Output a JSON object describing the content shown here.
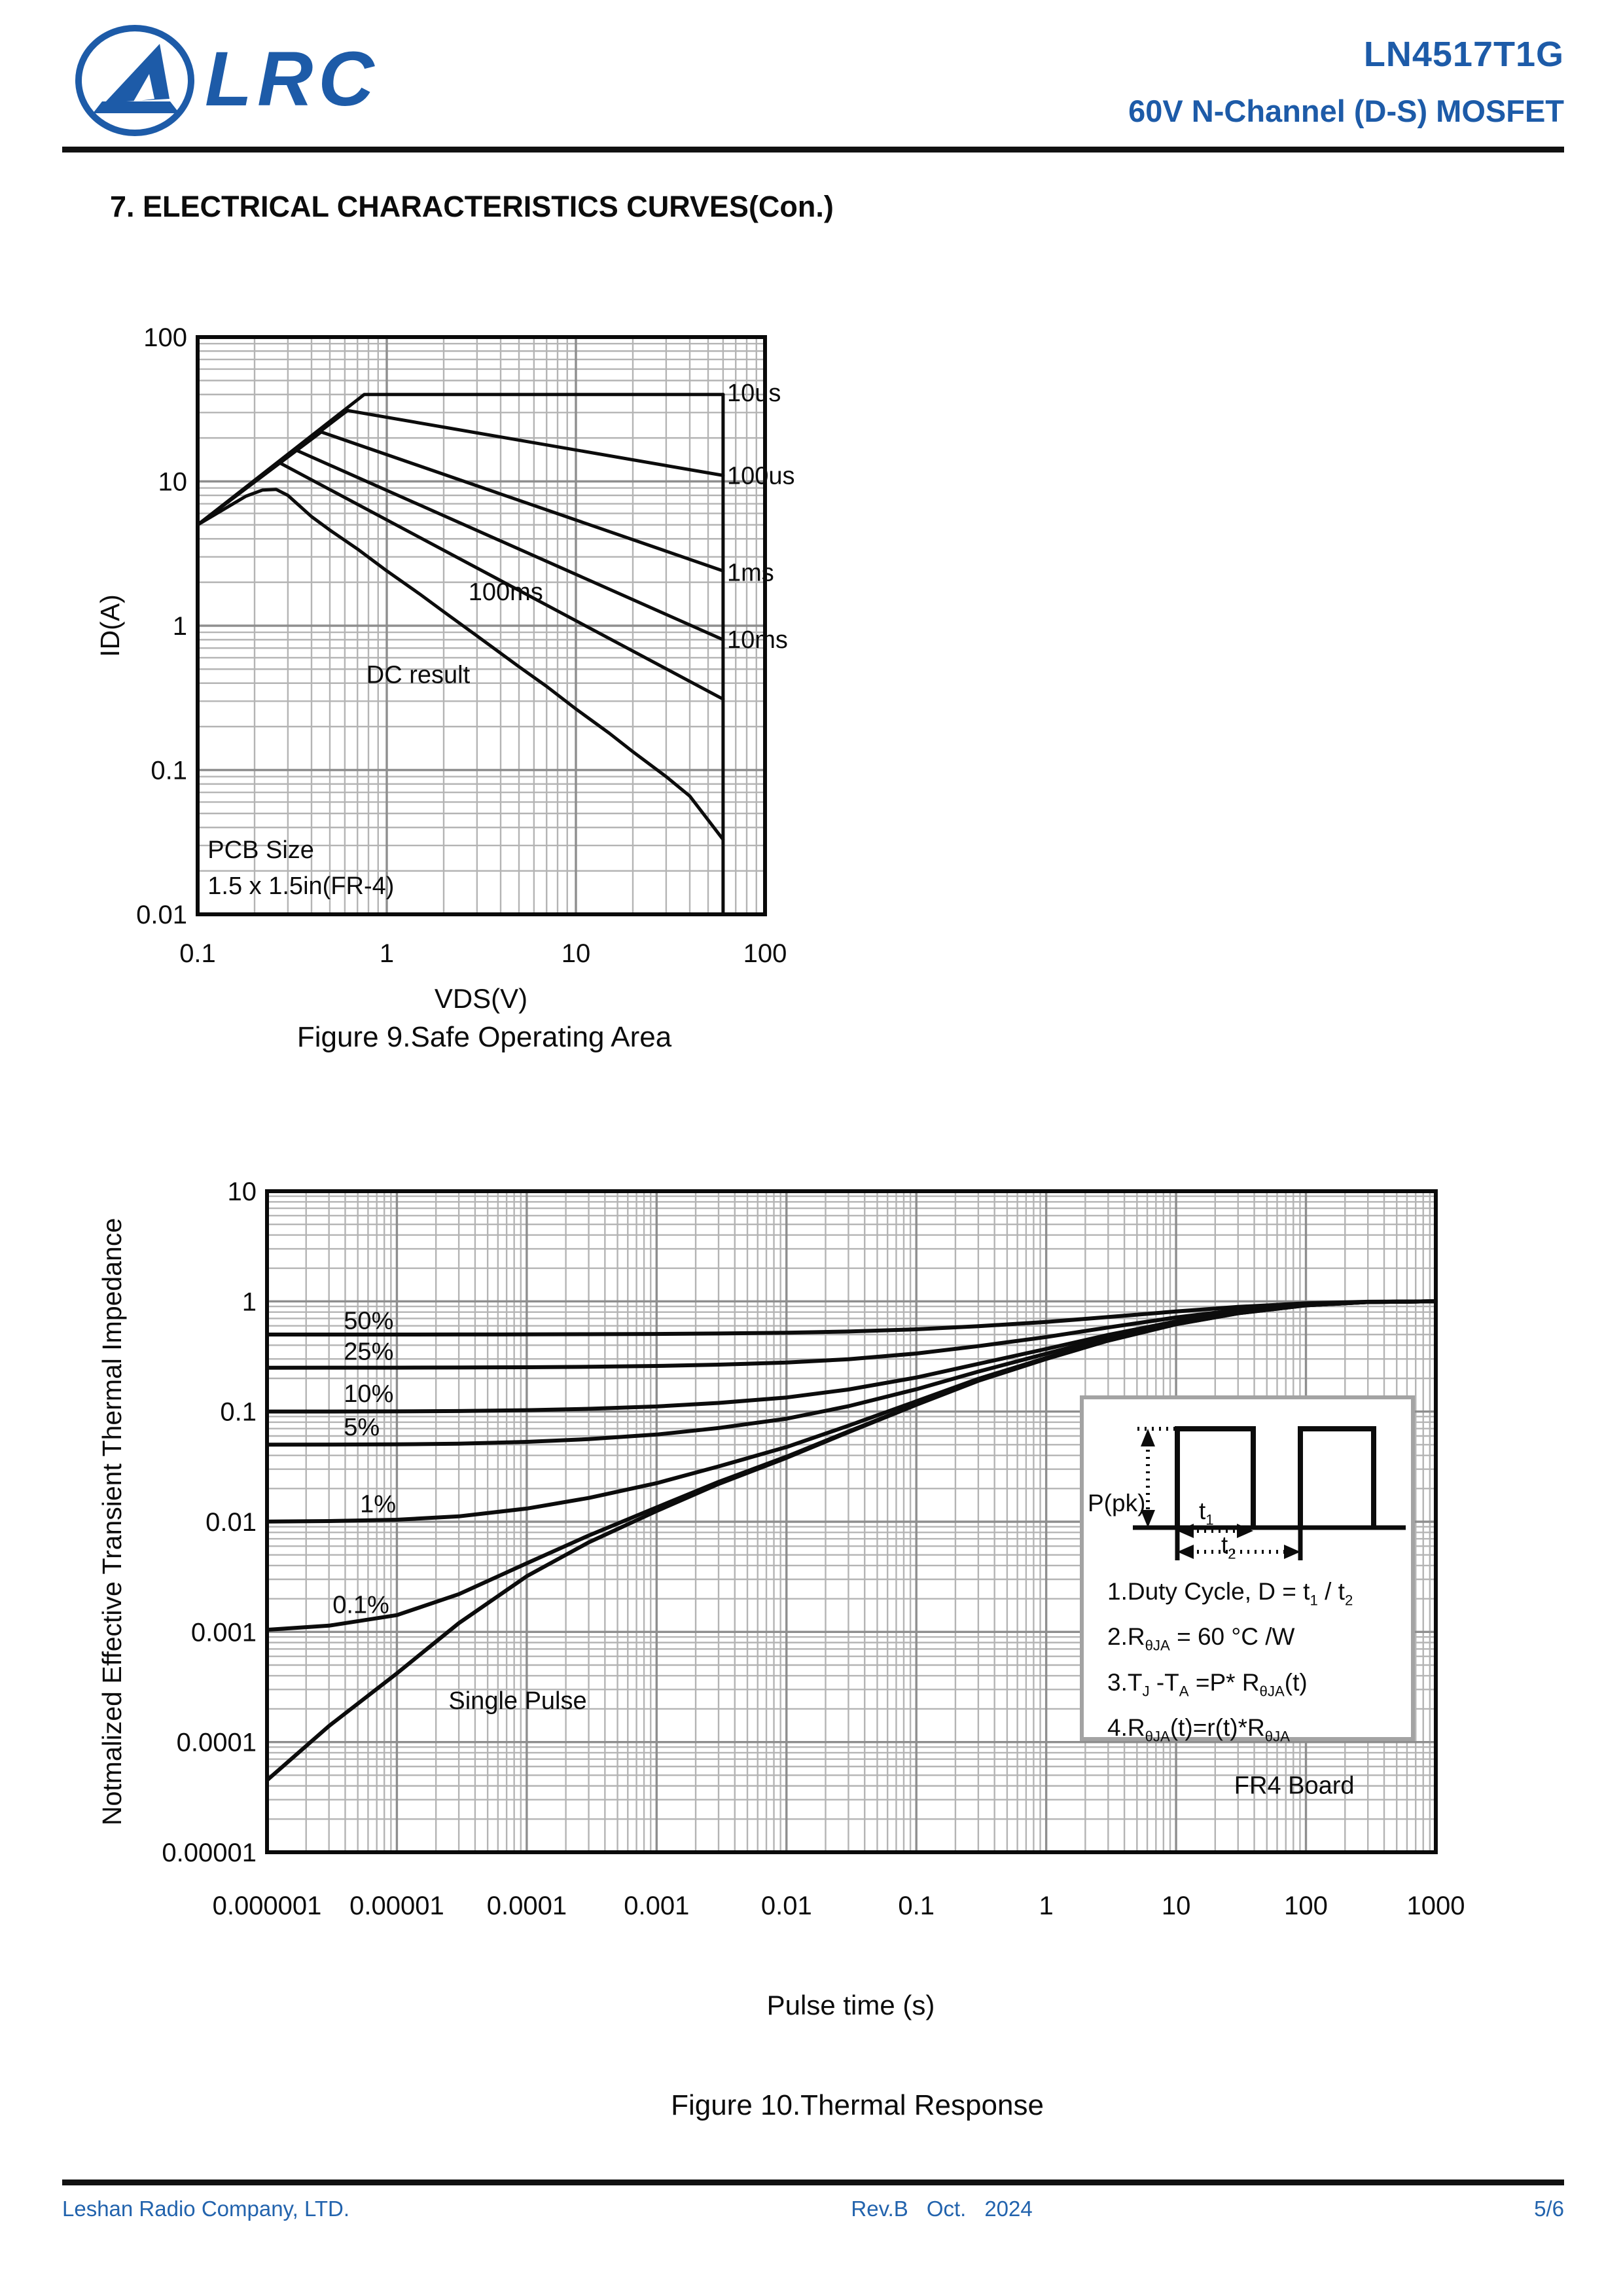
{
  "header": {
    "logo_text": "LRC",
    "part_number": "LN4517T1G",
    "subtitle": "60V N-Channel (D-S) MOSFET",
    "brand_color": "#1d5ba8"
  },
  "section_title": "7. ELECTRICAL CHARACTERISTICS CURVES(Con.)",
  "chart_data": [
    {
      "id": "soa",
      "type": "line",
      "title": "Figure 9.Safe Operating Area",
      "xlabel": "VDS(V)",
      "ylabel": "ID(A)",
      "xlim": [
        0.1,
        100
      ],
      "ylim": [
        0.01,
        100
      ],
      "scale": "log-log",
      "grid": true,
      "x_ticks": [
        "0.1",
        "1",
        "10",
        "100"
      ],
      "y_ticks": [
        "100",
        "10",
        "1",
        "0.1",
        "0.01"
      ],
      "series": [
        {
          "name": "10us",
          "points": [
            [
              0.1,
              5
            ],
            [
              0.76,
              40
            ],
            [
              60,
              40
            ]
          ]
        },
        {
          "name": "60V-limit",
          "points": [
            [
              60,
              40
            ],
            [
              60,
              0.01
            ]
          ]
        },
        {
          "name": "100us",
          "points": [
            [
              0.1,
              5
            ],
            [
              0.62,
              31
            ],
            [
              60,
              11
            ]
          ]
        },
        {
          "name": "1ms",
          "points": [
            [
              0.1,
              5
            ],
            [
              0.45,
              22
            ],
            [
              60,
              2.4
            ]
          ]
        },
        {
          "name": "10ms",
          "points": [
            [
              0.1,
              5
            ],
            [
              0.33,
              16.5
            ],
            [
              60,
              0.8
            ]
          ]
        },
        {
          "name": "100ms",
          "points": [
            [
              0.1,
              5
            ],
            [
              0.27,
              13.5
            ],
            [
              60,
              0.31
            ]
          ]
        },
        {
          "name": "DC",
          "points": [
            [
              0.1,
              5
            ],
            [
              0.14,
              6.5
            ],
            [
              0.18,
              7.9
            ],
            [
              0.22,
              8.7
            ],
            [
              0.26,
              8.8
            ],
            [
              0.3,
              8.0
            ],
            [
              0.34,
              6.9
            ],
            [
              0.4,
              5.7
            ],
            [
              0.5,
              4.6
            ],
            [
              0.7,
              3.4
            ],
            [
              1,
              2.4
            ],
            [
              1.5,
              1.65
            ],
            [
              2,
              1.25
            ],
            [
              3,
              0.85
            ],
            [
              5,
              0.52
            ],
            [
              7,
              0.38
            ],
            [
              10,
              0.265
            ],
            [
              15,
              0.18
            ],
            [
              20,
              0.134
            ],
            [
              30,
              0.09
            ],
            [
              40,
              0.066
            ],
            [
              60,
              0.033
            ]
          ]
        }
      ],
      "labels": [
        {
          "text": "10us",
          "x": 63,
          "y": 36
        },
        {
          "text": "100us",
          "x": 63,
          "y": 9.6
        },
        {
          "text": "1ms",
          "x": 63,
          "y": 2.05
        },
        {
          "text": "10ms",
          "x": 63,
          "y": 0.7
        },
        {
          "text": "100ms",
          "x": 2.7,
          "y": 1.5
        },
        {
          "text": "DC result",
          "x": 0.78,
          "y": 0.4
        },
        {
          "text": "PCB Size",
          "x": 0.113,
          "y": 0.0245
        },
        {
          "text": "1.5 x 1.5in(FR-4)",
          "x": 0.113,
          "y": 0.0138
        }
      ]
    },
    {
      "id": "thermal",
      "type": "line",
      "title": "Figure 10.Thermal Response",
      "xlabel": "Pulse time (s)",
      "ylabel": "Notmalized Effective Transient Thermal Impedance",
      "xlim": [
        1e-06,
        1000
      ],
      "ylim": [
        1e-05,
        10
      ],
      "scale": "log-log",
      "grid": true,
      "x_ticks": [
        "0.000001",
        "0.00001",
        "0.0001",
        "0.001",
        "0.01",
        "0.1",
        "1",
        "10",
        "100",
        "1000"
      ],
      "y_ticks": [
        "10",
        "1",
        "0.1",
        "0.01",
        "0.001",
        "0.0001",
        "0.00001"
      ],
      "duty_cycles": [
        {
          "label": "50%",
          "D": 0.5
        },
        {
          "label": "25%",
          "D": 0.25
        },
        {
          "label": "10%",
          "D": 0.1
        },
        {
          "label": "5%",
          "D": 0.05
        },
        {
          "label": "1%",
          "D": 0.01
        },
        {
          "label": "0.1%",
          "D": 0.001
        }
      ],
      "single_pulse": [
        [
          1e-06,
          4.5e-05
        ],
        [
          3e-06,
          0.00014
        ],
        [
          1e-05,
          0.00042
        ],
        [
          3e-05,
          0.0012
        ],
        [
          0.0001,
          0.0032
        ],
        [
          0.0003,
          0.0065
        ],
        [
          0.001,
          0.0125
        ],
        [
          0.003,
          0.022
        ],
        [
          0.01,
          0.038
        ],
        [
          0.03,
          0.065
        ],
        [
          0.1,
          0.115
        ],
        [
          0.3,
          0.19
        ],
        [
          1,
          0.3
        ],
        [
          3,
          0.44
        ],
        [
          10,
          0.62
        ],
        [
          30,
          0.78
        ],
        [
          100,
          0.92
        ],
        [
          300,
          0.985
        ],
        [
          1000,
          1.0
        ]
      ],
      "labels": [
        {
          "text": "50%",
          "x": 3.9e-06,
          "y": 0.56
        },
        {
          "text": "25%",
          "x": 3.9e-06,
          "y": 0.295
        },
        {
          "text": "10%",
          "x": 3.9e-06,
          "y": 0.122
        },
        {
          "text": "5%",
          "x": 3.9e-06,
          "y": 0.061
        },
        {
          "text": "1%",
          "x": 5.2e-06,
          "y": 0.0122
        },
        {
          "text": "0.1%",
          "x": 3.2e-06,
          "y": 0.00148
        },
        {
          "text": "Single Pulse",
          "x": 2.5e-05,
          "y": 0.0002
        },
        {
          "text": "FR4 Board",
          "x": 28,
          "y": 3.4e-05
        }
      ]
    }
  ],
  "inset": {
    "p_pk_label": "P(pk)",
    "t1_label": "t<sub>1</sub>",
    "t2_label": "t<sub>2</sub>",
    "notes": [
      "1.Duty Cycle, D = t<sub>1</sub> / t<sub>2</sub>",
      "2.R<sub>θJA</sub> = 60 °C /W",
      "3.T<sub>J</sub> -T<sub>A</sub> =P* R<sub>θJA</sub>(t)",
      "4.R<sub>θJA</sub>(t)=r(t)*R<sub>θJA</sub>"
    ]
  },
  "footer": {
    "company": "Leshan Radio Company, LTD.",
    "rev": "Rev.B",
    "month": "Oct.",
    "year": "2024",
    "page": "5/6",
    "color": "#2263ad"
  }
}
